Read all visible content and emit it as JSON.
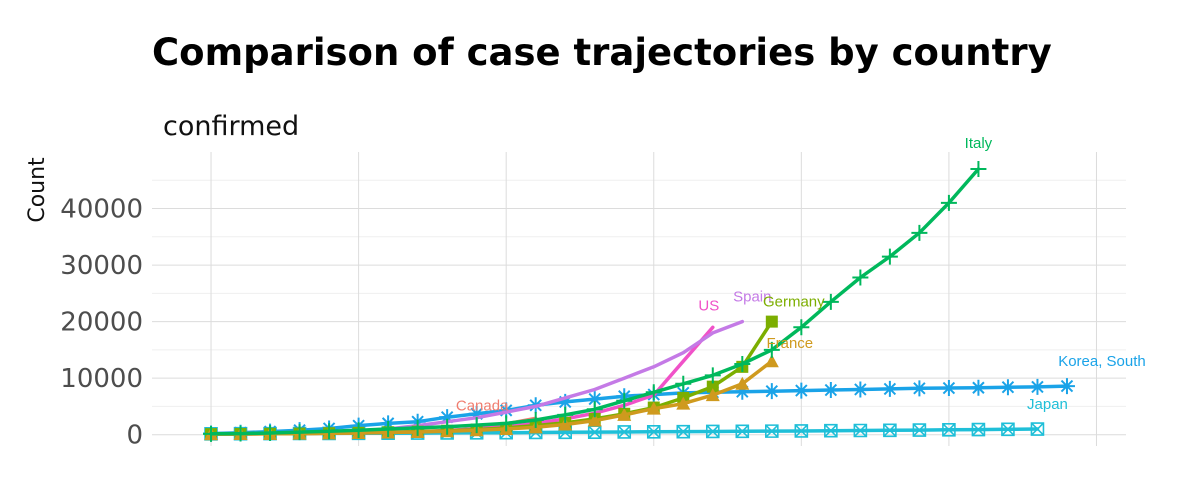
{
  "chart_data": {
    "type": "line",
    "title": "Comparison of case trajectories by country",
    "subtitle": "confirmed",
    "xlabel": "",
    "ylabel": "Count",
    "xlim": [
      -2,
      31
    ],
    "ylim": [
      -2000,
      50000
    ],
    "x_grid": [
      0,
      5,
      10,
      15,
      20,
      25,
      30
    ],
    "y_ticks": [
      0,
      10000,
      20000,
      30000,
      40000
    ],
    "y_tick_labels": [
      "0",
      "10000",
      "20000",
      "30000",
      "40000"
    ],
    "grid": true,
    "legend": "none (direct labels at line ends)",
    "series": [
      {
        "name": "Japan",
        "label": "Japan",
        "color": "#1fbfd8",
        "marker": "square-x",
        "x": [
          0,
          1,
          2,
          3,
          4,
          5,
          6,
          7,
          8,
          9,
          10,
          11,
          12,
          13,
          14,
          15,
          16,
          17,
          18,
          19,
          20,
          21,
          22,
          23,
          24,
          25,
          26,
          27,
          28
        ],
        "values": [
          160,
          170,
          190,
          210,
          230,
          250,
          270,
          290,
          310,
          330,
          360,
          390,
          420,
          450,
          480,
          510,
          540,
          570,
          600,
          630,
          660,
          700,
          740,
          780,
          820,
          860,
          900,
          950,
          1000
        ]
      },
      {
        "name": "Korea, South",
        "label": "Korea, South",
        "color": "#1aa3e8",
        "marker": "asterisk",
        "x": [
          0,
          1,
          2,
          3,
          4,
          5,
          6,
          7,
          8,
          9,
          10,
          11,
          12,
          13,
          14,
          15,
          16,
          17,
          18,
          19,
          20,
          21,
          22,
          23,
          24,
          25,
          26,
          27,
          28,
          29
        ],
        "values": [
          200,
          350,
          550,
          800,
          1100,
          1600,
          2000,
          2300,
          3100,
          3700,
          4300,
          5200,
          5800,
          6300,
          6800,
          7100,
          7400,
          7500,
          7600,
          7700,
          7800,
          7900,
          8000,
          8100,
          8200,
          8250,
          8300,
          8400,
          8450,
          8600
        ]
      },
      {
        "name": "Canada",
        "label": "Canada",
        "color": "#f07d6f",
        "marker": "none",
        "x": [
          8,
          9,
          10,
          11
        ],
        "values": [
          700,
          1100,
          1900,
          2900
        ]
      },
      {
        "name": "US",
        "label": "US",
        "color": "#f052c8",
        "marker": "none",
        "x": [
          0,
          1,
          2,
          3,
          4,
          5,
          6,
          7,
          8,
          9,
          10,
          11,
          12,
          13,
          14,
          15,
          16,
          17
        ],
        "values": [
          100,
          120,
          150,
          200,
          250,
          300,
          400,
          550,
          750,
          1000,
          1400,
          2000,
          2800,
          3800,
          5200,
          7000,
          13000,
          19000
        ]
      },
      {
        "name": "Spain",
        "label": "Spain",
        "color": "#c47ae6",
        "marker": "none",
        "x": [
          0,
          1,
          2,
          3,
          4,
          5,
          6,
          7,
          8,
          9,
          10,
          11,
          12,
          13,
          14,
          15,
          16,
          17,
          18
        ],
        "values": [
          150,
          200,
          300,
          400,
          550,
          700,
          1000,
          1600,
          2300,
          3000,
          4000,
          5000,
          6500,
          8000,
          10000,
          12000,
          14500,
          18000,
          20000
        ]
      },
      {
        "name": "Germany",
        "label": "Germany",
        "color": "#7cae00",
        "marker": "square",
        "x": [
          0,
          1,
          2,
          3,
          4,
          5,
          6,
          7,
          8,
          9,
          10,
          11,
          12,
          13,
          14,
          15,
          16,
          17,
          18,
          19
        ],
        "values": [
          100,
          130,
          160,
          200,
          260,
          330,
          420,
          540,
          700,
          900,
          1200,
          1600,
          2100,
          2800,
          3700,
          4800,
          6500,
          8500,
          12000,
          20000
        ]
      },
      {
        "name": "France",
        "label": "France",
        "color": "#cf9a1e",
        "marker": "triangle",
        "x": [
          0,
          1,
          2,
          3,
          4,
          5,
          6,
          7,
          8,
          9,
          10,
          11,
          12,
          13,
          14,
          15,
          16,
          17,
          18,
          19
        ],
        "values": [
          100,
          120,
          150,
          190,
          240,
          300,
          380,
          480,
          610,
          780,
          1000,
          1300,
          1800,
          2500,
          3500,
          4600,
          5500,
          7000,
          9000,
          13000
        ]
      },
      {
        "name": "Italy",
        "label": "Italy",
        "color": "#00b85c",
        "marker": "plus",
        "x": [
          0,
          1,
          2,
          3,
          4,
          5,
          6,
          7,
          8,
          9,
          10,
          11,
          12,
          13,
          14,
          15,
          16,
          17,
          18,
          19,
          20,
          21,
          22,
          23,
          24,
          25,
          26
        ],
        "values": [
          150,
          200,
          300,
          450,
          600,
          800,
          1000,
          1200,
          1400,
          1700,
          2000,
          2600,
          3500,
          4500,
          6000,
          7500,
          9000,
          10500,
          12500,
          15000,
          19000,
          23500,
          27800,
          31500,
          35700,
          41000,
          47000
        ]
      }
    ]
  }
}
